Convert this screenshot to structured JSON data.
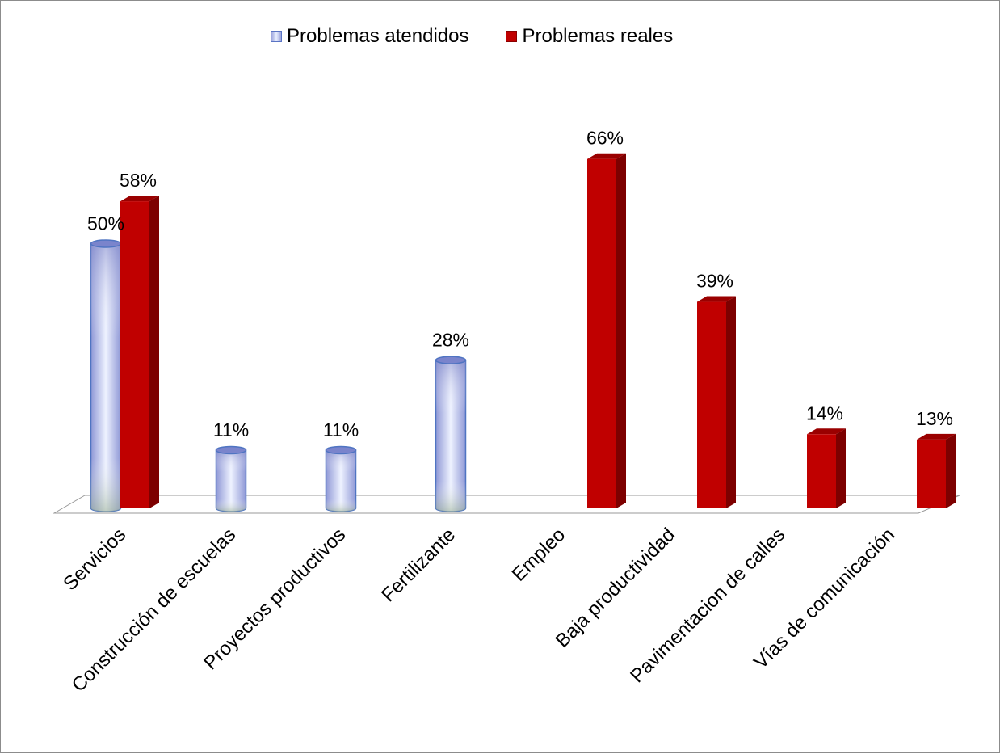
{
  "colors": {
    "atendidos": "#a9b3e6",
    "atendidos_edge": "#4f74c2",
    "reales_front": "#c00000",
    "reales_side": "#7d0000",
    "reales_top": "#9a0000",
    "floor": "#ffffff",
    "floor_stroke": "#9a9a9a",
    "frame": "#8c8c8c"
  },
  "chart_data": {
    "type": "bar",
    "style": "3d-clustered",
    "categories": [
      "Servicios",
      "Construcción de escuelas",
      "Proyectos productivos",
      "Fertilizante",
      "Empleo",
      "Baja productividad",
      "Pavimentacion de calles",
      "Vías de comunicación"
    ],
    "series": [
      {
        "name": "Problemas atendidos",
        "shape": "cylinder",
        "values": [
          50,
          11,
          11,
          28,
          null,
          null,
          null,
          null
        ],
        "labels": [
          "50%",
          "11%",
          "11%",
          "28%",
          null,
          null,
          null,
          null
        ]
      },
      {
        "name": "Problemas reales",
        "shape": "box",
        "values": [
          58,
          null,
          null,
          null,
          66,
          39,
          14,
          13
        ],
        "labels": [
          "58%",
          null,
          null,
          null,
          "66%",
          "39%",
          "14%",
          "13%"
        ]
      }
    ],
    "legend_position": "top",
    "grid": false,
    "value_axis_visible": false,
    "ylim": [
      0,
      66
    ]
  }
}
